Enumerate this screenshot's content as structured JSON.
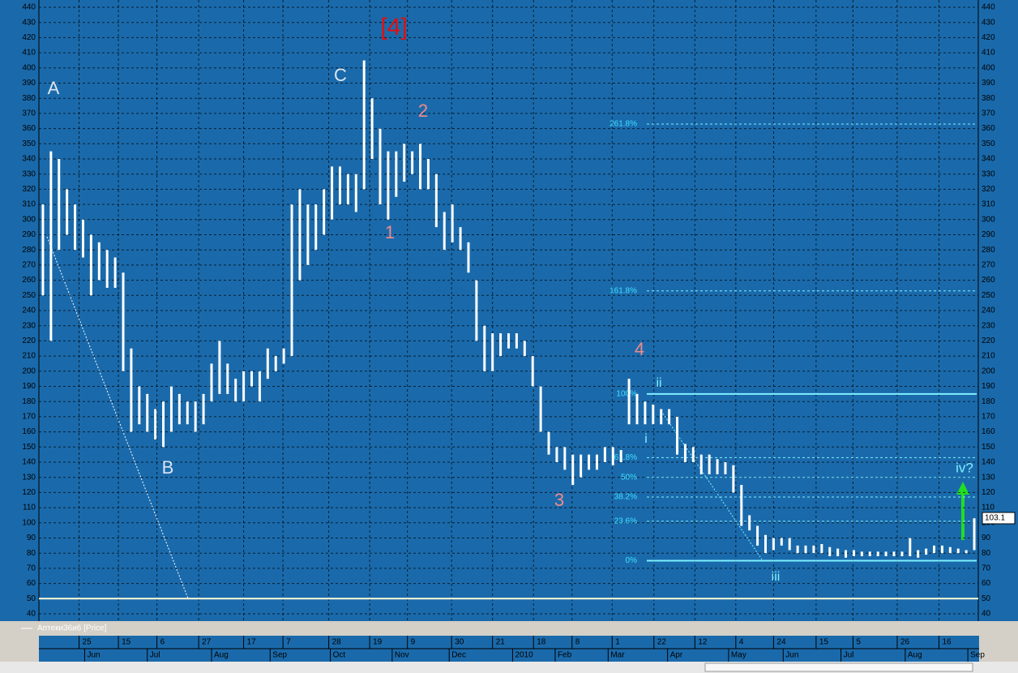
{
  "chart_data": {
    "type": "range-bar",
    "series": [
      {
        "name": "Аптеки36и6 [Price]",
        "color": "#ffffff",
        "high": [
          310,
          345,
          340,
          320,
          310,
          300,
          290,
          285,
          280,
          275,
          265,
          215,
          190,
          185,
          175,
          180,
          190,
          185,
          180,
          180,
          185,
          205,
          220,
          205,
          195,
          200,
          200,
          200,
          215,
          210,
          215,
          310,
          320,
          310,
          310,
          320,
          335,
          335,
          330,
          330,
          405,
          380,
          360,
          345,
          345,
          350,
          345,
          350,
          340,
          330,
          305,
          310,
          295,
          285,
          260,
          230,
          225,
          225,
          225,
          225,
          220,
          210,
          190,
          160,
          150,
          150,
          145,
          145,
          145,
          145,
          150,
          150,
          148,
          195,
          185,
          180,
          178,
          175,
          175,
          170,
          152,
          150,
          145,
          145,
          142,
          140,
          138,
          125,
          105,
          98,
          92,
          90,
          90,
          90,
          85,
          85,
          85,
          86,
          84,
          83,
          82,
          82,
          81,
          81,
          81,
          81,
          81,
          81,
          90,
          82,
          83,
          85,
          85,
          84,
          83,
          82,
          103
        ],
        "low": [
          250,
          220,
          280,
          290,
          280,
          275,
          250,
          260,
          255,
          255,
          200,
          160,
          165,
          160,
          155,
          150,
          160,
          165,
          165,
          160,
          165,
          180,
          185,
          185,
          180,
          180,
          190,
          180,
          195,
          200,
          205,
          210,
          260,
          270,
          280,
          290,
          300,
          310,
          310,
          305,
          320,
          340,
          310,
          300,
          315,
          325,
          330,
          320,
          320,
          295,
          280,
          285,
          280,
          265,
          220,
          200,
          200,
          210,
          215,
          215,
          210,
          190,
          160,
          145,
          140,
          135,
          125,
          130,
          135,
          135,
          140,
          138,
          140,
          165,
          165,
          165,
          165,
          165,
          165,
          145,
          140,
          140,
          132,
          132,
          132,
          132,
          120,
          98,
          95,
          85,
          80,
          82,
          85,
          82,
          80,
          80,
          80,
          80,
          78,
          78,
          77,
          78,
          78,
          78,
          78,
          78,
          78,
          78,
          78,
          77,
          79,
          80,
          80,
          80,
          80,
          80,
          82
        ]
      }
    ],
    "x": [
      0,
      1,
      2,
      3,
      4,
      5,
      6,
      7,
      8,
      9,
      10,
      11,
      12,
      13,
      14,
      15,
      16,
      17,
      18,
      19,
      20,
      21,
      22,
      23,
      24,
      25,
      26,
      27,
      28,
      29,
      30,
      31,
      32,
      33,
      34,
      35,
      36,
      37,
      38,
      39,
      40,
      41,
      42,
      43,
      44,
      45,
      46,
      47,
      48,
      49,
      50,
      51,
      52,
      53,
      54,
      55,
      56,
      57,
      58,
      59,
      60,
      61,
      62,
      63,
      64,
      65,
      66,
      67,
      68,
      69,
      70,
      71,
      72,
      73,
      74,
      75,
      76,
      77,
      78,
      79,
      80,
      81,
      82,
      83,
      84,
      85,
      86,
      87,
      88,
      89,
      90,
      91,
      92,
      93,
      94,
      95,
      96,
      97,
      98,
      99,
      100,
      101,
      102,
      103,
      104,
      105,
      106,
      107,
      108,
      109,
      110,
      111,
      112,
      113,
      114,
      115,
      116
    ],
    "xlim": [
      -0.5,
      116.5
    ],
    "xticks": [
      {
        "value": 4.5,
        "label": "25"
      },
      {
        "value": 9.4,
        "label": "15"
      },
      {
        "value": 14.2,
        "label": "6"
      },
      {
        "value": 19.4,
        "label": "27"
      },
      {
        "value": 25,
        "label": "17"
      },
      {
        "value": 29.9,
        "label": "7"
      },
      {
        "value": 35.6,
        "label": "28"
      },
      {
        "value": 40.7,
        "label": "19"
      },
      {
        "value": 45.4,
        "label": "9"
      },
      {
        "value": 50.9,
        "label": "30"
      },
      {
        "value": 56,
        "label": "21"
      },
      {
        "value": 61.1,
        "label": "18"
      },
      {
        "value": 65.9,
        "label": "8"
      },
      {
        "value": 70.9,
        "label": "1"
      },
      {
        "value": 76.1,
        "label": "22"
      },
      {
        "value": 81.2,
        "label": "12"
      },
      {
        "value": 86.3,
        "label": "4"
      },
      {
        "value": 91,
        "label": "24"
      },
      {
        "value": 96.3,
        "label": "15"
      },
      {
        "value": 100.9,
        "label": "5"
      },
      {
        "value": 106.4,
        "label": "26"
      },
      {
        "value": 111.6,
        "label": "16"
      }
    ],
    "month_ticks": [
      {
        "value": 5.2,
        "label": "Jun"
      },
      {
        "value": 13,
        "label": "Jul"
      },
      {
        "value": 21,
        "label": "Aug"
      },
      {
        "value": 28.3,
        "label": "Sep"
      },
      {
        "value": 35.8,
        "label": "Oct"
      },
      {
        "value": 43.5,
        "label": "Nov"
      },
      {
        "value": 50.6,
        "label": "Dec"
      },
      {
        "value": 58.5,
        "label": "2010"
      },
      {
        "value": 63.8,
        "label": "Feb"
      },
      {
        "value": 70.4,
        "label": "Mar"
      },
      {
        "value": 77.8,
        "label": "Apr"
      },
      {
        "value": 85.4,
        "label": "May"
      },
      {
        "value": 92.2,
        "label": "Jun"
      },
      {
        "value": 99.4,
        "label": "Jul"
      },
      {
        "value": 107.4,
        "label": "Aug"
      },
      {
        "value": 115.2,
        "label": "Sep"
      }
    ],
    "ylim": [
      40,
      440
    ],
    "yticks": [
      40,
      50,
      60,
      70,
      80,
      90,
      100,
      110,
      120,
      130,
      140,
      150,
      160,
      170,
      180,
      190,
      200,
      210,
      220,
      230,
      240,
      250,
      260,
      270,
      280,
      290,
      300,
      310,
      320,
      330,
      340,
      350,
      360,
      370,
      380,
      390,
      400,
      410,
      420,
      430,
      440
    ],
    "grid": true,
    "last_price": 103.1,
    "hlines": [
      {
        "value": 50,
        "color": "#fffbd8"
      }
    ],
    "fib_levels": [
      {
        "value": 363,
        "label": "261.8%"
      },
      {
        "value": 253,
        "label": "161.8%"
      },
      {
        "value": 185,
        "label": "100%"
      },
      {
        "value": 143,
        "label": "61.8%"
      },
      {
        "value": 130,
        "label": "50%"
      },
      {
        "value": 117,
        "label": "38.2%"
      },
      {
        "value": 101,
        "label": "23.6%"
      },
      {
        "value": 75,
        "label": "0%"
      }
    ],
    "annotations": [
      {
        "text": "[4]",
        "color": "#e01010"
      },
      {
        "text": "A",
        "color": "#dde4f0"
      },
      {
        "text": "B",
        "color": "#dde4f0"
      },
      {
        "text": "C",
        "color": "#dde4f0"
      },
      {
        "text": "1",
        "color": "#f08a8a"
      },
      {
        "text": "2",
        "color": "#f08a8a"
      },
      {
        "text": "3",
        "color": "#f08a8a"
      },
      {
        "text": "4",
        "color": "#f08a8a"
      },
      {
        "text": "i",
        "color": "#7ff0ff"
      },
      {
        "text": "ii",
        "color": "#7ff0ff"
      },
      {
        "text": "iii",
        "color": "#7ff0ff"
      },
      {
        "text": "iv?",
        "color": "#7ff0ff"
      }
    ]
  }
}
